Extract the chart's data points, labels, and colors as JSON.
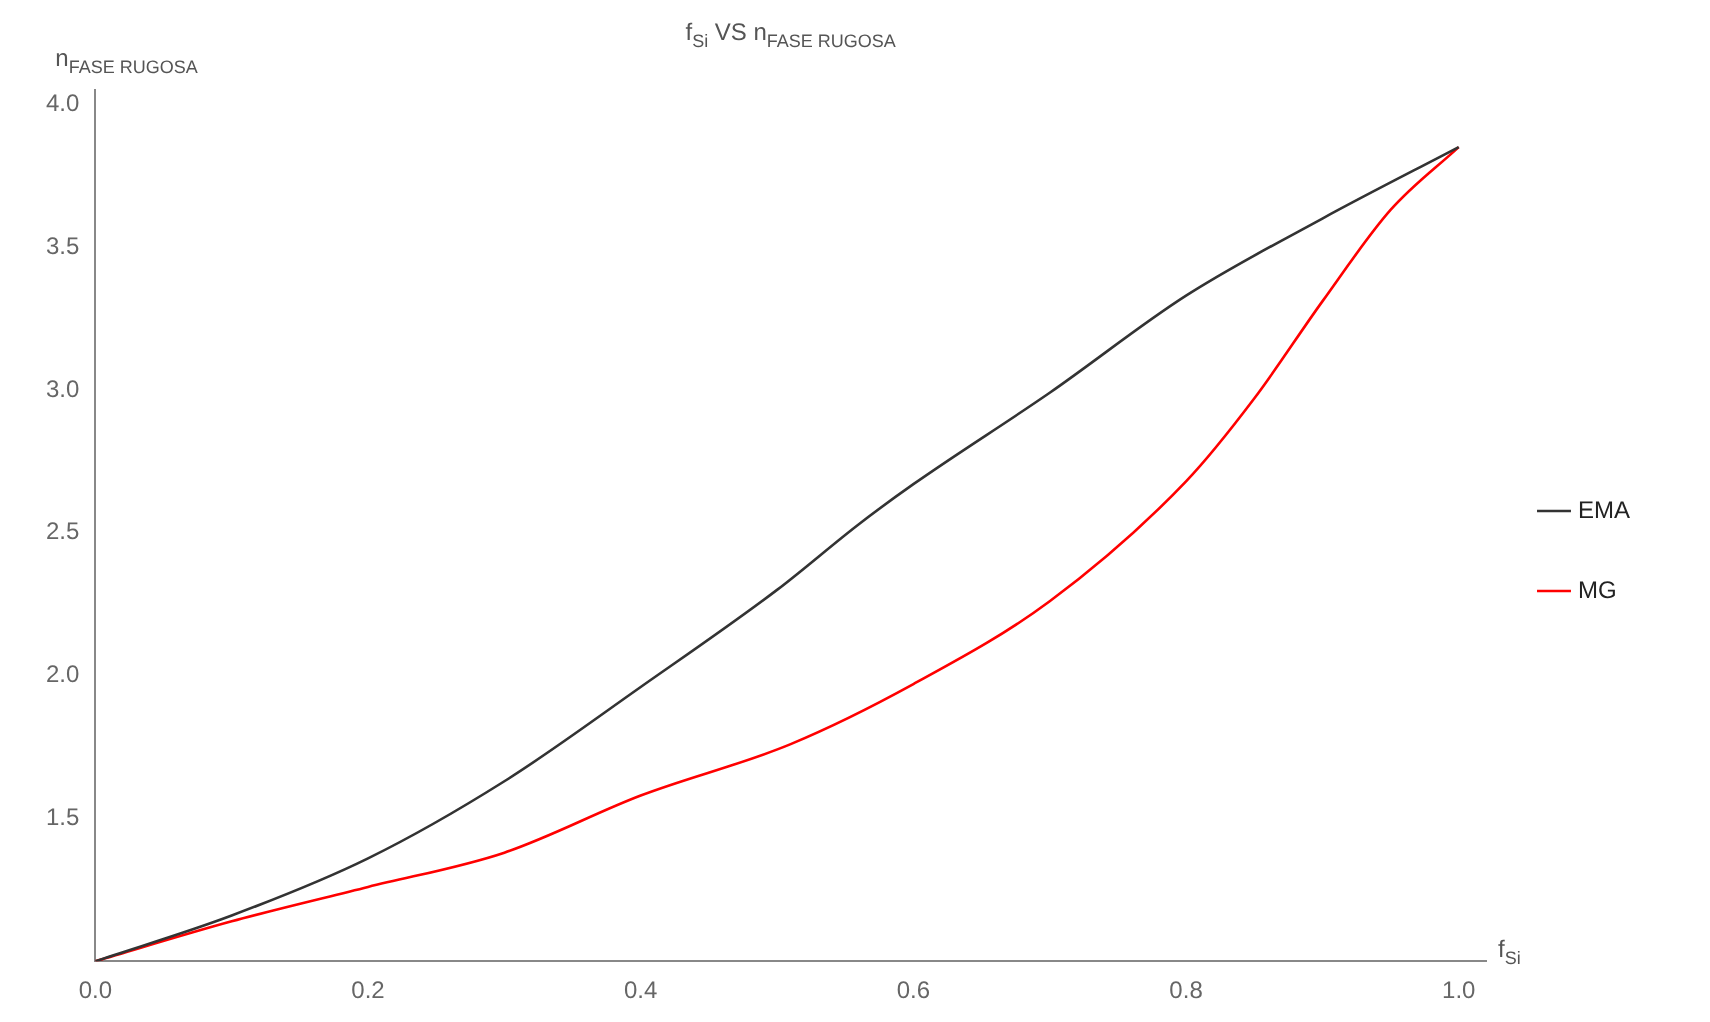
{
  "chart_data": {
    "type": "line",
    "title": "f$_{Si}$ VS n$_{FASE RUGOSA}$",
    "xlabel": "f$_{Si}$",
    "ylabel": "n$_{FASE RUGOSA}$",
    "xlim": [
      0,
      1.02
    ],
    "xticks": [
      {
        "value": 0,
        "label": "0.0"
      },
      0.2,
      0.4,
      0.6,
      0.8,
      {
        "value": 1,
        "label": "1.0"
      }
    ],
    "ylim": [
      1,
      4.05
    ],
    "yticks": [
      1.5,
      {
        "value": 2,
        "label": "2.0"
      },
      2.5,
      {
        "value": 3,
        "label": "3.0"
      },
      3.5,
      {
        "value": 4,
        "label": "4.0"
      }
    ],
    "grid": false,
    "legend": "right",
    "marker": "none",
    "line_style": "solid",
    "series": [
      {
        "name": "EMA",
        "color": "#333333",
        "x": [
          0,
          0.1,
          0.2,
          0.3,
          0.4,
          0.5,
          0.56,
          0.6,
          0.7,
          0.8,
          0.9,
          1
        ],
        "values": [
          1,
          1.16,
          1.36,
          1.63,
          1.96,
          2.3,
          2.53,
          2.67,
          2.99,
          3.33,
          3.6,
          3.85
        ]
      },
      {
        "name": "MG",
        "color": "#ff0000",
        "x": [
          0,
          0.1,
          0.2,
          0.3,
          0.4,
          0.51,
          0.6,
          0.7,
          0.8,
          0.85,
          0.9,
          0.95,
          1
        ],
        "values": [
          1,
          1.14,
          1.26,
          1.38,
          1.58,
          1.76,
          1.97,
          2.26,
          2.68,
          2.97,
          3.31,
          3.63,
          3.85
        ]
      }
    ]
  }
}
